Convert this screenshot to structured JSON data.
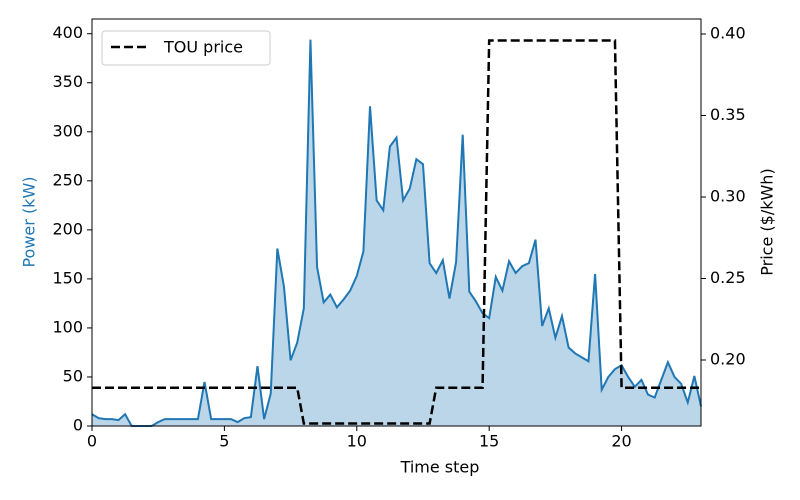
{
  "chart_data": {
    "type": "line",
    "xlabel": "Time step",
    "ylabel": "Power (kW)",
    "y2label": "Price ($/kWh)",
    "xlim": [
      0,
      23
    ],
    "xticks": [
      0,
      5,
      10,
      15,
      20
    ],
    "ylim": [
      0,
      415
    ],
    "yticks": [
      0,
      50,
      100,
      150,
      200,
      250,
      300,
      350,
      400
    ],
    "y2lim": [
      0.1595,
      0.4092
    ],
    "y2ticks": [
      {
        "value": 0.2,
        "label": "0.20"
      },
      0.25,
      {
        "value": 0.3,
        "label": "0.30"
      },
      0.35,
      {
        "value": 0.4,
        "label": "0.40"
      }
    ],
    "legend": "upper left",
    "series": [
      {
        "color": "#1f77b4",
        "fill": true,
        "x": [
          0,
          0.25,
          0.5,
          0.75,
          1,
          1.25,
          1.5,
          1.75,
          2,
          2.25,
          2.5,
          2.75,
          3,
          3.25,
          3.5,
          3.75,
          4,
          4.25,
          4.5,
          4.75,
          5,
          5.25,
          5.5,
          5.75,
          6,
          6.25,
          6.5,
          6.75,
          7,
          7.25,
          7.5,
          7.75,
          8,
          8.25,
          8.5,
          8.75,
          9,
          9.25,
          9.5,
          9.75,
          10,
          10.25,
          10.5,
          10.75,
          11,
          11.25,
          11.5,
          11.75,
          12,
          12.25,
          12.5,
          12.75,
          13,
          13.25,
          13.5,
          13.75,
          14,
          14.25,
          14.5,
          14.75,
          15,
          15.25,
          15.5,
          15.75,
          16,
          16.25,
          16.5,
          16.75,
          17,
          17.25,
          17.5,
          17.75,
          18,
          18.25,
          18.5,
          18.75,
          19,
          19.25,
          19.5,
          19.75,
          20,
          20.25,
          20.5,
          20.75,
          21,
          21.25,
          21.5,
          21.75,
          22,
          22.25,
          22.5,
          22.75,
          23
        ],
        "values": [
          12,
          8,
          7,
          7,
          6,
          12,
          0,
          0,
          0,
          0,
          4,
          7,
          7,
          7,
          7,
          7,
          7,
          45,
          7,
          7,
          7,
          7,
          4,
          8,
          9,
          61,
          7,
          33,
          181,
          142,
          67,
          85,
          120,
          394,
          162,
          126,
          134,
          121,
          129,
          138,
          153,
          178,
          326,
          230,
          220,
          285,
          294,
          230,
          242,
          272,
          267,
          166,
          156,
          169,
          130,
          167,
          297,
          137,
          127,
          115,
          110,
          152,
          138,
          168,
          156,
          163,
          166,
          190,
          102,
          120,
          90,
          112,
          80,
          74,
          70,
          66,
          155,
          37,
          50,
          58,
          62,
          50,
          40,
          47,
          32,
          29,
          47,
          65,
          50,
          43,
          24,
          51,
          20
        ]
      },
      {
        "name": "TOU price",
        "color": "#000000",
        "axis": "y2",
        "dashed": true,
        "x": [
          0,
          7.75,
          8,
          12.75,
          13,
          14.75,
          15,
          19.75,
          20,
          23
        ],
        "values": [
          0.183,
          0.183,
          0.161,
          0.161,
          0.183,
          0.183,
          0.396,
          0.396,
          0.183,
          0.183
        ]
      }
    ]
  }
}
